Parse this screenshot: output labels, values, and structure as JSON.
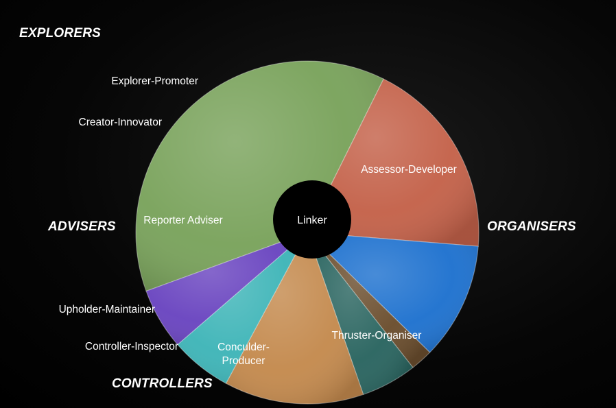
{
  "chart_data": {
    "type": "pie",
    "donut_hole": true,
    "center_label": "Linker",
    "group_labels": {
      "explorers": "EXPLORERS",
      "advisers": "ADVISERS",
      "organisers": "ORGANISERS",
      "controllers": "CONTROLLERS"
    },
    "slices": [
      {
        "label": "Assessor-Developer",
        "value": 36,
        "color": "#7aa35c"
      },
      {
        "label": "Thruster-Organiser",
        "value": 18,
        "color": "#c4624a"
      },
      {
        "label": "Conculder-Producer",
        "value": 10.5,
        "color": "#1f72cf"
      },
      {
        "label": "Controller-Inspector",
        "value": 2,
        "color": "#6b4e2e"
      },
      {
        "label": "Upholder-Maintainer",
        "value": 5,
        "color": "#2a6560"
      },
      {
        "label": "Reporter Adviser",
        "value": 12.5,
        "color": "#c48a4e"
      },
      {
        "label": "Creator-Innovator",
        "value": 5.5,
        "color": "#3fb5b8"
      },
      {
        "label": "Explorer-Promoter",
        "value": 5.5,
        "color": "#6a45c0"
      }
    ]
  }
}
